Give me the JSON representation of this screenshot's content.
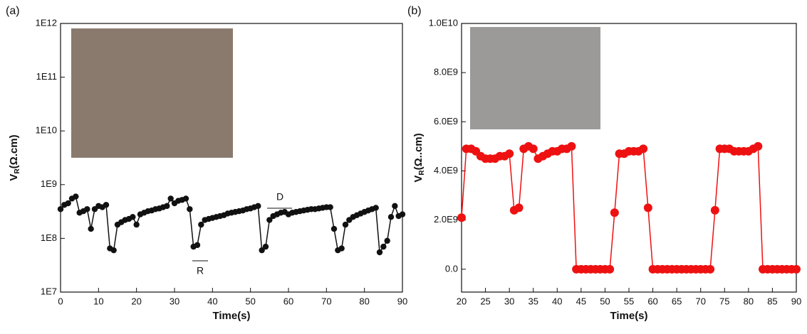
{
  "chart_data": [
    {
      "type": "line",
      "panel": "(a)",
      "x_label": "Time(s)",
      "y_label": "V",
      "y_label_sub": "R",
      "y_label_unit": "(Ω.cm)",
      "log_scale": true,
      "annotations": [
        "D",
        "R"
      ],
      "xlim": [
        0,
        90
      ],
      "xticks": [
        0,
        10,
        20,
        30,
        40,
        50,
        60,
        70,
        80,
        90
      ],
      "ylim": [
        10000000.0,
        1000000000000.0
      ],
      "yticks": [
        {
          "value": 10000000.0,
          "label": "1E7"
        },
        {
          "value": 100000000.0,
          "label": "1E8"
        },
        {
          "value": 1000000000.0,
          "label": "1E9"
        },
        {
          "value": 10000000000.0,
          "label": "1E10"
        },
        {
          "value": 100000000000.0,
          "label": "1E11"
        },
        {
          "value": 1000000000000.0,
          "label": "1E12"
        }
      ],
      "series": [
        {
          "color": "#111111",
          "x": [
            0,
            1,
            2,
            3,
            4,
            5,
            6,
            7,
            8,
            9,
            10,
            11,
            12,
            13,
            14,
            15,
            16,
            17,
            18,
            19,
            20,
            21,
            22,
            23,
            24,
            25,
            26,
            27,
            28,
            29,
            30,
            31,
            32,
            33,
            34,
            35,
            36,
            37,
            38,
            39,
            40,
            41,
            42,
            43,
            44,
            45,
            46,
            47,
            48,
            49,
            50,
            51,
            52,
            53,
            54,
            55,
            56,
            57,
            58,
            59,
            60,
            61,
            62,
            63,
            64,
            65,
            66,
            67,
            68,
            69,
            70,
            71,
            72,
            73,
            74,
            75,
            76,
            77,
            78,
            79,
            80,
            81,
            82,
            83,
            84,
            85,
            86,
            87,
            88,
            89,
            90
          ],
          "values": [
            350000000.0,
            420000000.0,
            450000000.0,
            550000000.0,
            600000000.0,
            300000000.0,
            320000000.0,
            350000000.0,
            150000000.0,
            350000000.0,
            400000000.0,
            380000000.0,
            420000000.0,
            65000000.0,
            60000000.0,
            180000000.0,
            200000000.0,
            220000000.0,
            230000000.0,
            250000000.0,
            180000000.0,
            280000000.0,
            300000000.0,
            320000000.0,
            330000000.0,
            350000000.0,
            360000000.0,
            380000000.0,
            400000000.0,
            550000000.0,
            450000000.0,
            500000000.0,
            520000000.0,
            550000000.0,
            350000000.0,
            70000000.0,
            75000000.0,
            180000000.0,
            220000000.0,
            230000000.0,
            240000000.0,
            250000000.0,
            260000000.0,
            270000000.0,
            290000000.0,
            300000000.0,
            310000000.0,
            320000000.0,
            330000000.0,
            350000000.0,
            360000000.0,
            380000000.0,
            400000000.0,
            60000000.0,
            70000000.0,
            220000000.0,
            260000000.0,
            280000000.0,
            300000000.0,
            310000000.0,
            280000000.0,
            300000000.0,
            310000000.0,
            320000000.0,
            330000000.0,
            340000000.0,
            350000000.0,
            350000000.0,
            360000000.0,
            370000000.0,
            380000000.0,
            380000000.0,
            150000000.0,
            60000000.0,
            65000000.0,
            180000000.0,
            220000000.0,
            250000000.0,
            270000000.0,
            290000000.0,
            310000000.0,
            330000000.0,
            350000000.0,
            370000000.0,
            55000000.0,
            70000000.0,
            90000000.0,
            250000000.0,
            400000000.0,
            260000000.0,
            280000000.0
          ]
        }
      ]
    },
    {
      "type": "line",
      "panel": "(b)",
      "x_label": "Time(s)",
      "y_label": "V",
      "y_label_sub": "R",
      "y_label_unit": "(Ω..cm)",
      "log_scale": false,
      "xlim": [
        20,
        90
      ],
      "xticks": [
        20,
        25,
        30,
        35,
        40,
        45,
        50,
        55,
        60,
        65,
        70,
        75,
        80,
        85,
        90
      ],
      "ylim": [
        -930000000.0,
        10000000000.0
      ],
      "yticks": [
        {
          "value": 0,
          "label": "0.0"
        },
        {
          "value": 2000000000.0,
          "label": "2.0E9"
        },
        {
          "value": 4000000000.0,
          "label": "4.0E9"
        },
        {
          "value": 6000000000.0,
          "label": "6.0E9"
        },
        {
          "value": 8000000000.0,
          "label": "8.0E9"
        },
        {
          "value": 10000000000.0,
          "label": "1.0E10"
        }
      ],
      "series": [
        {
          "color": "#ee1111",
          "x": [
            20,
            21,
            22,
            23,
            24,
            25,
            26,
            27,
            28,
            29,
            30,
            31,
            32,
            33,
            34,
            35,
            36,
            37,
            38,
            39,
            40,
            41,
            42,
            43,
            44,
            45,
            46,
            47,
            48,
            49,
            50,
            51,
            52,
            53,
            54,
            55,
            56,
            57,
            58,
            59,
            60,
            61,
            62,
            63,
            64,
            65,
            66,
            67,
            68,
            69,
            70,
            71,
            72,
            73,
            74,
            75,
            76,
            77,
            78,
            79,
            80,
            81,
            82,
            83,
            84,
            85,
            86,
            87,
            88,
            89,
            90
          ],
          "values": [
            2100000000.0,
            4900000000.0,
            4900000000.0,
            4800000000.0,
            4600000000.0,
            4500000000.0,
            4500000000.0,
            4500000000.0,
            4600000000.0,
            4600000000.0,
            4700000000.0,
            2400000000.0,
            2500000000.0,
            4900000000.0,
            5000000000.0,
            4900000000.0,
            4500000000.0,
            4600000000.0,
            4700000000.0,
            4800000000.0,
            4800000000.0,
            4900000000.0,
            4900000000.0,
            5000000000.0,
            0,
            0,
            0,
            0,
            0,
            0,
            0,
            0,
            2300000000.0,
            4700000000.0,
            4700000000.0,
            4800000000.0,
            4800000000.0,
            4800000000.0,
            4900000000.0,
            2500000000.0,
            0,
            0,
            0,
            0,
            0,
            0,
            0,
            0,
            0,
            0,
            0,
            0,
            0,
            2400000000.0,
            4900000000.0,
            4900000000.0,
            4900000000.0,
            4800000000.0,
            4800000000.0,
            4800000000.0,
            4800000000.0,
            4900000000.0,
            5000000000.0,
            0,
            0,
            0,
            0,
            0,
            0,
            0,
            0
          ]
        }
      ]
    }
  ]
}
